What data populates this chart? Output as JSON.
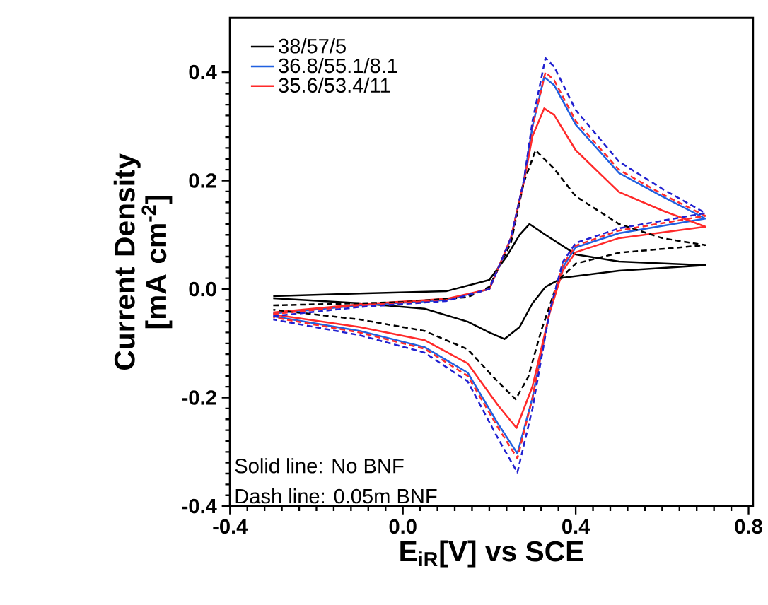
{
  "chart_data": {
    "type": "line",
    "xlabel": "E$_{iR}$[V] vs SCE",
    "ylabel": "Current Density [mA cm$^{-2}$]",
    "xlim": [
      -0.4,
      0.81
    ],
    "ylim": [
      -0.4,
      0.5
    ],
    "xticks": [
      {
        "value": -0.4,
        "label": "-0.4"
      },
      {
        "value": 0.0,
        "label": "0.0"
      },
      {
        "value": 0.4,
        "label": "0.4"
      },
      {
        "value": 0.8,
        "label": "0.8"
      }
    ],
    "yticks": [
      {
        "value": -0.4,
        "label": "-0.4"
      },
      {
        "value": -0.2,
        "label": "-0.2"
      },
      {
        "value": 0.0,
        "label": "0.0"
      },
      {
        "value": 0.2,
        "label": "0.2"
      },
      {
        "value": 0.4,
        "label": "0.4"
      }
    ],
    "legend": "top left",
    "marker": "none",
    "grid": false,
    "annotations": [
      "Solid line: No BNF",
      "Dash line: 0.05m BNF"
    ],
    "series": [
      {
        "name": "38/57/5",
        "color": "#000000",
        "line_style": "solid",
        "x": [
          -0.3,
          -0.1,
          0.1,
          0.2,
          0.24,
          0.27,
          0.293,
          0.33,
          0.4,
          0.5,
          0.7,
          0.5,
          0.37,
          0.33,
          0.3,
          0.27,
          0.235,
          0.2,
          0.15,
          0.05,
          -0.1,
          -0.3
        ],
        "values": [
          -0.013,
          -0.008,
          -0.004,
          0.017,
          0.06,
          0.1,
          0.12,
          0.1,
          0.064,
          0.051,
          0.044,
          0.034,
          0.021,
          0.004,
          -0.026,
          -0.07,
          -0.092,
          -0.08,
          -0.06,
          -0.036,
          -0.026,
          -0.017
        ]
      },
      {
        "name": "36.8/55.1/8.1",
        "color": "#2060e0",
        "line_style": "solid",
        "x": [
          -0.3,
          -0.1,
          0.1,
          0.2,
          0.25,
          0.28,
          0.3,
          0.327,
          0.35,
          0.4,
          0.5,
          0.6,
          0.7,
          0.5,
          0.4,
          0.37,
          0.34,
          0.3,
          0.265,
          0.22,
          0.15,
          0.05,
          -0.1,
          -0.3
        ],
        "values": [
          -0.045,
          -0.03,
          -0.02,
          0.0,
          0.094,
          0.2,
          0.3,
          0.391,
          0.376,
          0.303,
          0.214,
          0.171,
          0.13,
          0.103,
          0.077,
          0.04,
          -0.04,
          -0.2,
          -0.303,
          -0.248,
          -0.154,
          -0.107,
          -0.077,
          -0.05
        ]
      },
      {
        "name": "35.6/53.4/11",
        "color": "#ff2a2a",
        "line_style": "solid",
        "x": [
          -0.3,
          -0.1,
          0.1,
          0.2,
          0.25,
          0.28,
          0.3,
          0.327,
          0.35,
          0.4,
          0.5,
          0.6,
          0.7,
          0.5,
          0.4,
          0.37,
          0.34,
          0.3,
          0.263,
          0.22,
          0.15,
          0.05,
          -0.1,
          -0.3
        ],
        "values": [
          -0.043,
          -0.028,
          -0.018,
          0.0,
          0.094,
          0.197,
          0.282,
          0.333,
          0.321,
          0.256,
          0.179,
          0.145,
          0.115,
          0.094,
          0.068,
          0.034,
          -0.043,
          -0.179,
          -0.256,
          -0.214,
          -0.137,
          -0.094,
          -0.07,
          -0.047
        ]
      },
      {
        "color": "#000000",
        "line_style": "dashed",
        "x": [
          -0.3,
          0.0,
          0.15,
          0.2,
          0.25,
          0.28,
          0.307,
          0.35,
          0.4,
          0.5,
          0.6,
          0.7,
          0.5,
          0.4,
          0.36,
          0.32,
          0.29,
          0.261,
          0.22,
          0.15,
          0.05,
          -0.1,
          -0.3
        ],
        "values": [
          -0.03,
          -0.024,
          -0.015,
          0.004,
          0.085,
          0.197,
          0.256,
          0.222,
          0.171,
          0.12,
          0.094,
          0.081,
          0.067,
          0.047,
          0.017,
          -0.077,
          -0.162,
          -0.203,
          -0.171,
          -0.111,
          -0.077,
          -0.056,
          -0.038
        ]
      },
      {
        "color": "#ff2a2a",
        "line_style": "dashed",
        "x": [
          -0.3,
          -0.1,
          0.1,
          0.2,
          0.25,
          0.28,
          0.3,
          0.33,
          0.35,
          0.4,
          0.5,
          0.6,
          0.7,
          0.5,
          0.4,
          0.37,
          0.34,
          0.3,
          0.265,
          0.22,
          0.15,
          0.05,
          -0.1,
          -0.3
        ],
        "values": [
          -0.046,
          -0.03,
          -0.02,
          0.0,
          0.094,
          0.2,
          0.3,
          0.4,
          0.385,
          0.31,
          0.22,
          0.175,
          0.135,
          0.108,
          0.08,
          0.045,
          -0.04,
          -0.2,
          -0.312,
          -0.255,
          -0.16,
          -0.11,
          -0.08,
          -0.052
        ]
      },
      {
        "color": "#2020d0",
        "line_style": "dashed",
        "x": [
          -0.3,
          -0.1,
          0.1,
          0.2,
          0.25,
          0.28,
          0.3,
          0.33,
          0.35,
          0.4,
          0.5,
          0.6,
          0.7,
          0.5,
          0.4,
          0.37,
          0.34,
          0.3,
          0.265,
          0.22,
          0.15,
          0.05,
          -0.1,
          -0.3
        ],
        "values": [
          -0.05,
          -0.033,
          -0.022,
          0.0,
          0.094,
          0.2,
          0.31,
          0.426,
          0.41,
          0.33,
          0.235,
          0.185,
          0.14,
          0.112,
          0.085,
          0.05,
          -0.04,
          -0.22,
          -0.338,
          -0.275,
          -0.17,
          -0.117,
          -0.085,
          -0.056
        ]
      }
    ]
  }
}
